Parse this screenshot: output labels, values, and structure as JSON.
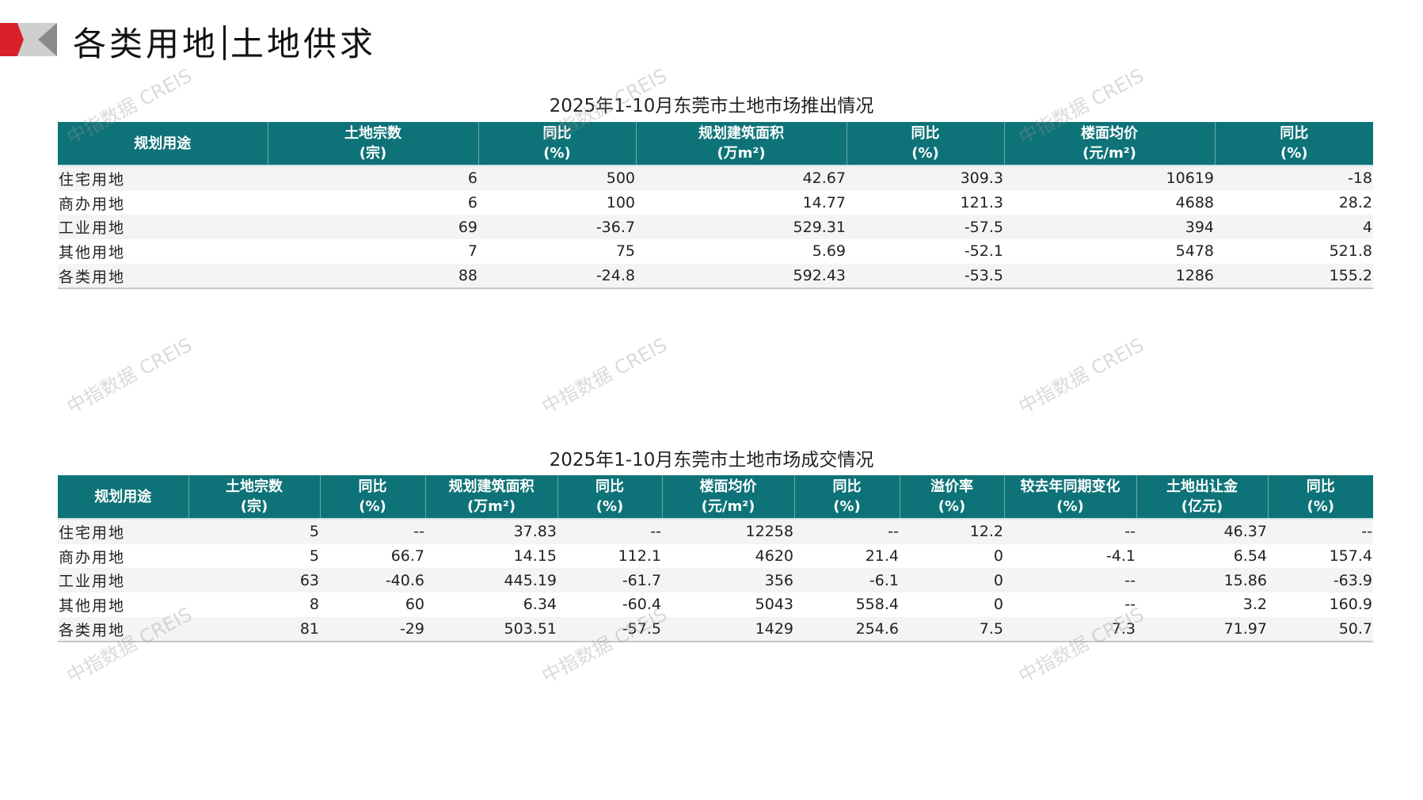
{
  "header": {
    "title_left": "各类用地",
    "title_right": "土地供求"
  },
  "watermark": "中指数据 CREIS",
  "colors": {
    "header_bg": "#0e7378",
    "accent_red": "#d7202a"
  },
  "supply_table": {
    "title": "2025年1-10月东莞市土地市场推出情况",
    "columns": [
      [
        "规划用途",
        ""
      ],
      [
        "土地宗数",
        "(宗)"
      ],
      [
        "同比",
        "(%)"
      ],
      [
        "规划建筑面积",
        "(万m²)"
      ],
      [
        "同比",
        "(%)"
      ],
      [
        "楼面均价",
        "(元/m²)"
      ],
      [
        "同比",
        "(%)"
      ]
    ],
    "rows": [
      [
        "住宅用地",
        "6",
        "500",
        "42.67",
        "309.3",
        "10619",
        "-18"
      ],
      [
        "商办用地",
        "6",
        "100",
        "14.77",
        "121.3",
        "4688",
        "28.2"
      ],
      [
        "工业用地",
        "69",
        "-36.7",
        "529.31",
        "-57.5",
        "394",
        "4"
      ],
      [
        "其他用地",
        "7",
        "75",
        "5.69",
        "-52.1",
        "5478",
        "521.8"
      ],
      [
        "各类用地",
        "88",
        "-24.8",
        "592.43",
        "-53.5",
        "1286",
        "155.2"
      ]
    ]
  },
  "deal_table": {
    "title": "2025年1-10月东莞市土地市场成交情况",
    "columns": [
      [
        "规划用途",
        ""
      ],
      [
        "土地宗数",
        "(宗)"
      ],
      [
        "同比",
        "(%)"
      ],
      [
        "规划建筑面积",
        "(万m²)"
      ],
      [
        "同比",
        "(%)"
      ],
      [
        "楼面均价",
        "(元/m²)"
      ],
      [
        "同比",
        "(%)"
      ],
      [
        "溢价率",
        "(%)"
      ],
      [
        "较去年同期变化",
        "(%)"
      ],
      [
        "土地出让金",
        "(亿元)"
      ],
      [
        "同比",
        "(%)"
      ]
    ],
    "rows": [
      [
        "住宅用地",
        "5",
        "--",
        "37.83",
        "--",
        "12258",
        "--",
        "12.2",
        "--",
        "46.37",
        "--"
      ],
      [
        "商办用地",
        "5",
        "66.7",
        "14.15",
        "112.1",
        "4620",
        "21.4",
        "0",
        "-4.1",
        "6.54",
        "157.4"
      ],
      [
        "工业用地",
        "63",
        "-40.6",
        "445.19",
        "-61.7",
        "356",
        "-6.1",
        "0",
        "--",
        "15.86",
        "-63.9"
      ],
      [
        "其他用地",
        "8",
        "60",
        "6.34",
        "-60.4",
        "5043",
        "558.4",
        "0",
        "--",
        "3.2",
        "160.9"
      ],
      [
        "各类用地",
        "81",
        "-29",
        "503.51",
        "-57.5",
        "1429",
        "254.6",
        "7.5",
        "7.3",
        "71.97",
        "50.7"
      ]
    ]
  }
}
